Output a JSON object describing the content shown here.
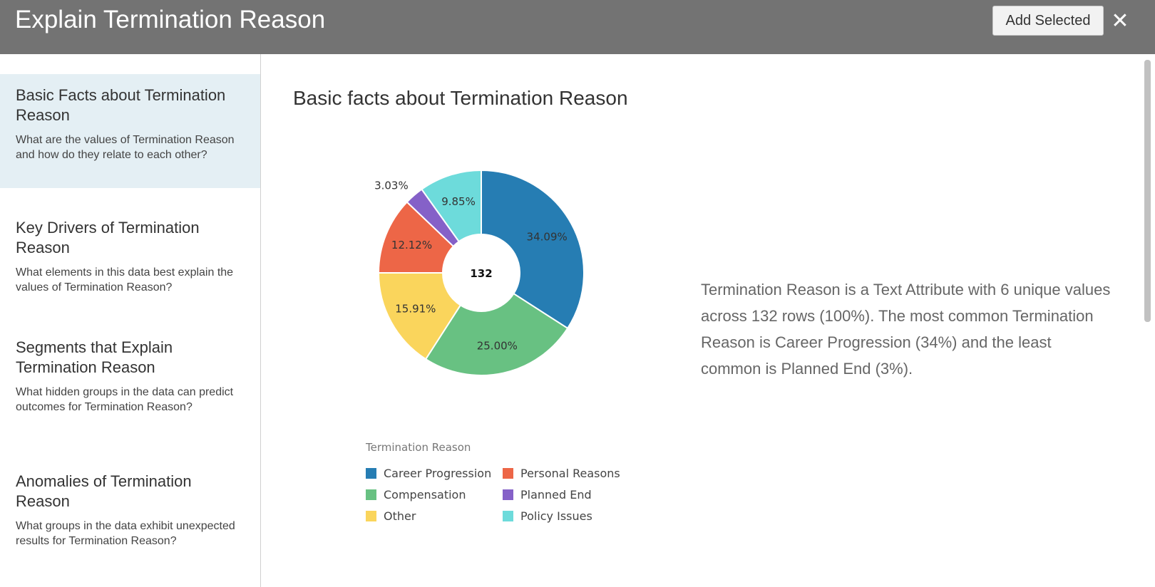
{
  "header": {
    "title": "Explain Termination Reason",
    "add_selected_label": "Add Selected",
    "close_symbol": "✕",
    "close_icon": "close-icon"
  },
  "sidebar": {
    "items": [
      {
        "title": "Basic Facts about Termination Reason",
        "description": "What are the values of Termination Reason and how do they relate to each other?",
        "active": true
      },
      {
        "title": "Key Drivers of Termination Reason",
        "description": "What elements in this data best explain the values of Termination Reason?",
        "active": false
      },
      {
        "title": "Segments that Explain Termination Reason",
        "description": "What hidden groups in the data can predict outcomes for Termination Reason?",
        "active": false
      },
      {
        "title": "Anomalies of Termination Reason",
        "description": "What groups in the data exhibit unexpected results for Termination Reason?",
        "active": false
      }
    ]
  },
  "main": {
    "title": "Basic facts about Termination Reason",
    "summary": "Termination Reason is a Text Attribute with 6 unique values across 132 rows (100%). The most common Termination Reason is Career Progression (34%) and the least common is Planned End (3%)."
  },
  "chart_data": {
    "type": "pie",
    "variant": "donut",
    "center_label": "132",
    "legend_title": "Termination Reason",
    "legend_placement": "bottom",
    "slices": [
      {
        "name": "Career Progression",
        "value": 34.09,
        "label": "34.09%",
        "color": "#267db3"
      },
      {
        "name": "Compensation",
        "value": 25.0,
        "label": "25.00%",
        "color": "#68c182"
      },
      {
        "name": "Other",
        "value": 15.91,
        "label": "15.91%",
        "color": "#fad55c"
      },
      {
        "name": "Personal Reasons",
        "value": 12.12,
        "label": "12.12%",
        "color": "#ed6647"
      },
      {
        "name": "Planned End",
        "value": 3.03,
        "label": "3.03%",
        "color": "#8561c8"
      },
      {
        "name": "Policy Issues",
        "value": 9.85,
        "label": "9.85%",
        "color": "#6ddbdb"
      }
    ],
    "legend_order": [
      "Career Progression",
      "Personal Reasons",
      "Compensation",
      "Planned End",
      "Other",
      "Policy Issues"
    ]
  }
}
